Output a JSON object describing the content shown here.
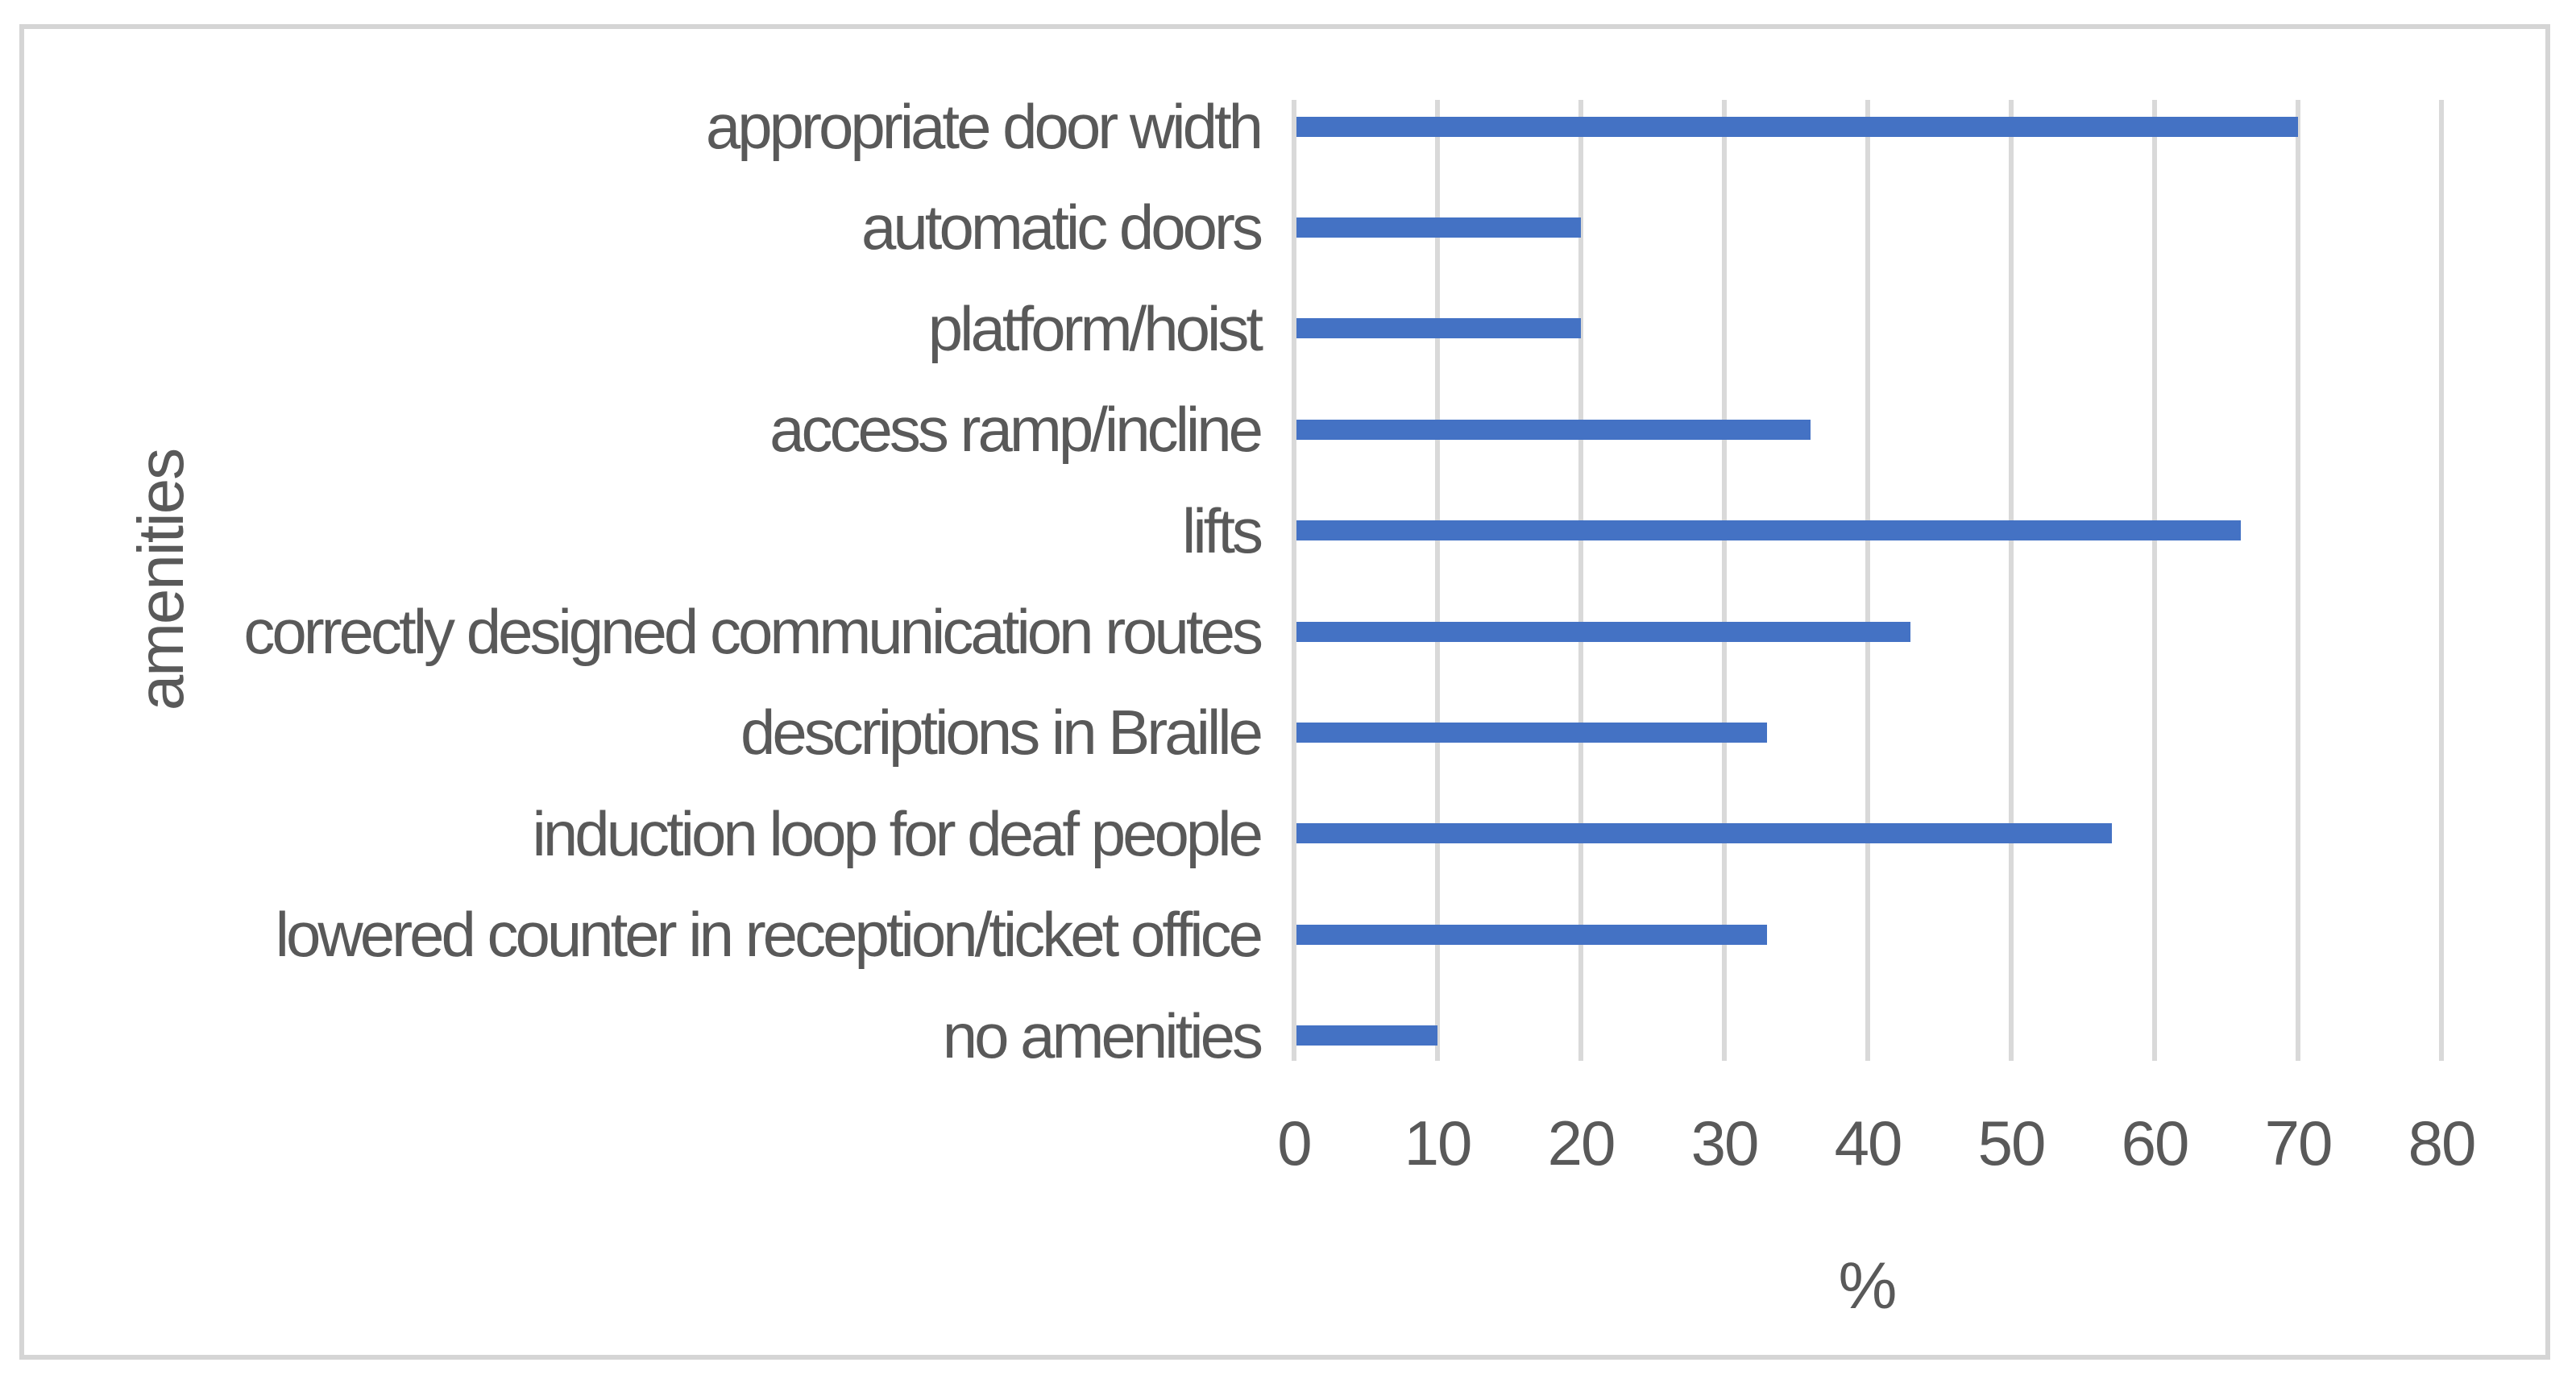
{
  "chart_data": {
    "type": "bar",
    "orientation": "horizontal",
    "title": "",
    "categories": [
      "appropriate door width",
      "automatic doors",
      "platform/hoist",
      "access ramp/incline",
      "lifts",
      "correctly designed communication routes",
      "descriptions in Braille",
      "induction loop for deaf people",
      "lowered counter in reception/ticket office",
      "no amenities"
    ],
    "values": [
      70,
      20,
      20,
      36,
      66,
      43,
      33,
      57,
      33,
      10
    ],
    "xlabel": "%",
    "ylabel": "amenities",
    "xlim": [
      0,
      80
    ],
    "xticks": [
      0,
      10,
      20,
      30,
      40,
      50,
      60,
      70,
      80
    ],
    "grid": "vertical-only",
    "legend_position": "none",
    "bar_color": "#4472C4",
    "gridline_color": "#D9D9D9",
    "text_color": "#595959",
    "frame_color": "#D5D5D5"
  }
}
